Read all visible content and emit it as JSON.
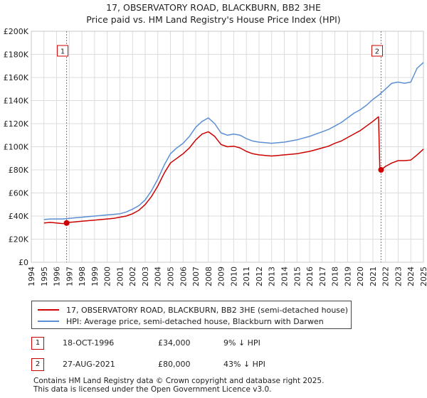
{
  "title_line1": "17, OBSERVATORY ROAD, BLACKBURN, BB2 3HE",
  "title_line2": "Price paid vs. HM Land Registry's House Price Index (HPI)",
  "chart_data": {
    "type": "line",
    "title": "Price paid vs. HM Land Registry's House Price Index (HPI)",
    "xlabel": "",
    "ylabel": "",
    "xlim": [
      1994,
      2025
    ],
    "ylim": [
      0,
      200000
    ],
    "x_ticks": [
      "1994",
      "1995",
      "1996",
      "1997",
      "1998",
      "1999",
      "2000",
      "2001",
      "2002",
      "2003",
      "2004",
      "2005",
      "2006",
      "2007",
      "2008",
      "2009",
      "2010",
      "2011",
      "2012",
      "2013",
      "2014",
      "2015",
      "2016",
      "2017",
      "2018",
      "2019",
      "2020",
      "2021",
      "2022",
      "2023",
      "2024",
      "2025"
    ],
    "y_ticks": [
      {
        "value": 0,
        "label": "£0"
      },
      {
        "value": 20000,
        "label": "£20K"
      },
      {
        "value": 40000,
        "label": "£40K"
      },
      {
        "value": 60000,
        "label": "£60K"
      },
      {
        "value": 80000,
        "label": "£80K"
      },
      {
        "value": 100000,
        "label": "£100K"
      },
      {
        "value": 120000,
        "label": "£120K"
      },
      {
        "value": 140000,
        "label": "£140K"
      },
      {
        "value": 160000,
        "label": "£160K"
      },
      {
        "value": 180000,
        "label": "£180K"
      },
      {
        "value": 200000,
        "label": "£200K"
      }
    ],
    "grid": true,
    "series": [
      {
        "name": "17, OBSERVATORY ROAD, BLACKBURN, BB2 3HE (semi-detached house)",
        "color": "#cc0000",
        "points": [
          [
            1995.0,
            34000
          ],
          [
            1995.5,
            34500
          ],
          [
            1996.0,
            34000
          ],
          [
            1996.5,
            33500
          ],
          [
            1996.79,
            34000
          ],
          [
            1997.0,
            34500
          ],
          [
            1997.5,
            35000
          ],
          [
            1998.0,
            35500
          ],
          [
            1998.5,
            36000
          ],
          [
            1999.0,
            36500
          ],
          [
            1999.5,
            37000
          ],
          [
            2000.0,
            37500
          ],
          [
            2000.5,
            38000
          ],
          [
            2001.0,
            39000
          ],
          [
            2001.5,
            40000
          ],
          [
            2002.0,
            42000
          ],
          [
            2002.5,
            45000
          ],
          [
            2003.0,
            50000
          ],
          [
            2003.5,
            57000
          ],
          [
            2004.0,
            66000
          ],
          [
            2004.5,
            77000
          ],
          [
            2005.0,
            86000
          ],
          [
            2005.5,
            90000
          ],
          [
            2006.0,
            94000
          ],
          [
            2006.5,
            99000
          ],
          [
            2007.0,
            106000
          ],
          [
            2007.5,
            111000
          ],
          [
            2008.0,
            113000
          ],
          [
            2008.5,
            109000
          ],
          [
            2009.0,
            102000
          ],
          [
            2009.5,
            100000
          ],
          [
            2010.0,
            100500
          ],
          [
            2010.5,
            99000
          ],
          [
            2011.0,
            96000
          ],
          [
            2011.5,
            94000
          ],
          [
            2012.0,
            93000
          ],
          [
            2012.5,
            92500
          ],
          [
            2013.0,
            92000
          ],
          [
            2013.5,
            92500
          ],
          [
            2014.0,
            93000
          ],
          [
            2014.5,
            93500
          ],
          [
            2015.0,
            94000
          ],
          [
            2015.5,
            95000
          ],
          [
            2016.0,
            96000
          ],
          [
            2016.5,
            97500
          ],
          [
            2017.0,
            99000
          ],
          [
            2017.5,
            100500
          ],
          [
            2018.0,
            103000
          ],
          [
            2018.5,
            105000
          ],
          [
            2019.0,
            108000
          ],
          [
            2019.5,
            111000
          ],
          [
            2020.0,
            114000
          ],
          [
            2020.5,
            118000
          ],
          [
            2021.0,
            122000
          ],
          [
            2021.45,
            126000
          ],
          [
            2021.55,
            81000
          ],
          [
            2021.65,
            80000
          ],
          [
            2022.0,
            83000
          ],
          [
            2022.5,
            86000
          ],
          [
            2023.0,
            88000
          ],
          [
            2023.5,
            88000
          ],
          [
            2024.0,
            88500
          ],
          [
            2024.5,
            93000
          ],
          [
            2025.0,
            98000
          ]
        ]
      },
      {
        "name": "HPI: Average price, semi-detached house, Blackburn with Darwen",
        "color": "#5b8fd4",
        "points": [
          [
            1995.0,
            37000
          ],
          [
            1995.5,
            37500
          ],
          [
            1996.0,
            37500
          ],
          [
            1996.5,
            37500
          ],
          [
            1997.0,
            38000
          ],
          [
            1997.5,
            38500
          ],
          [
            1998.0,
            39000
          ],
          [
            1998.5,
            39500
          ],
          [
            1999.0,
            40000
          ],
          [
            1999.5,
            40500
          ],
          [
            2000.0,
            41000
          ],
          [
            2000.5,
            41500
          ],
          [
            2001.0,
            42000
          ],
          [
            2001.5,
            43500
          ],
          [
            2002.0,
            46000
          ],
          [
            2002.5,
            49000
          ],
          [
            2003.0,
            54000
          ],
          [
            2003.5,
            62000
          ],
          [
            2004.0,
            72000
          ],
          [
            2004.5,
            84000
          ],
          [
            2005.0,
            94000
          ],
          [
            2005.5,
            99000
          ],
          [
            2006.0,
            103000
          ],
          [
            2006.5,
            109000
          ],
          [
            2007.0,
            117000
          ],
          [
            2007.5,
            122000
          ],
          [
            2008.0,
            125000
          ],
          [
            2008.5,
            120000
          ],
          [
            2009.0,
            112000
          ],
          [
            2009.5,
            110000
          ],
          [
            2010.0,
            111000
          ],
          [
            2010.5,
            110000
          ],
          [
            2011.0,
            107000
          ],
          [
            2011.5,
            105000
          ],
          [
            2012.0,
            104000
          ],
          [
            2012.5,
            103500
          ],
          [
            2013.0,
            103000
          ],
          [
            2013.5,
            103500
          ],
          [
            2014.0,
            104000
          ],
          [
            2014.5,
            105000
          ],
          [
            2015.0,
            106000
          ],
          [
            2015.5,
            107500
          ],
          [
            2016.0,
            109000
          ],
          [
            2016.5,
            111000
          ],
          [
            2017.0,
            113000
          ],
          [
            2017.5,
            115000
          ],
          [
            2018.0,
            118000
          ],
          [
            2018.5,
            121000
          ],
          [
            2019.0,
            125000
          ],
          [
            2019.5,
            129000
          ],
          [
            2020.0,
            132000
          ],
          [
            2020.5,
            136000
          ],
          [
            2021.0,
            141000
          ],
          [
            2021.5,
            145000
          ],
          [
            2022.0,
            150000
          ],
          [
            2022.5,
            155000
          ],
          [
            2023.0,
            156000
          ],
          [
            2023.5,
            155000
          ],
          [
            2024.0,
            156000
          ],
          [
            2024.5,
            168000
          ],
          [
            2025.0,
            173000
          ]
        ]
      }
    ],
    "markers": [
      {
        "label": "1",
        "x": 1996.79,
        "value": 34000
      },
      {
        "label": "2",
        "x": 2021.65,
        "value": 80000
      }
    ]
  },
  "legend": {
    "items": [
      {
        "label": "17, OBSERVATORY ROAD, BLACKBURN, BB2 3HE (semi-detached house)",
        "color": "#cc0000"
      },
      {
        "label": "HPI: Average price, semi-detached house, Blackburn with Darwen",
        "color": "#5b8fd4"
      }
    ]
  },
  "transactions": [
    {
      "badge": "1",
      "date": "18-OCT-1996",
      "price": "£34,000",
      "hpi": "9% ↓ HPI"
    },
    {
      "badge": "2",
      "date": "27-AUG-2021",
      "price": "£80,000",
      "hpi": "43% ↓ HPI"
    }
  ],
  "footer": {
    "line1": "Contains HM Land Registry data © Crown copyright and database right 2025.",
    "line2": "This data is licensed under the Open Government Licence v3.0."
  }
}
